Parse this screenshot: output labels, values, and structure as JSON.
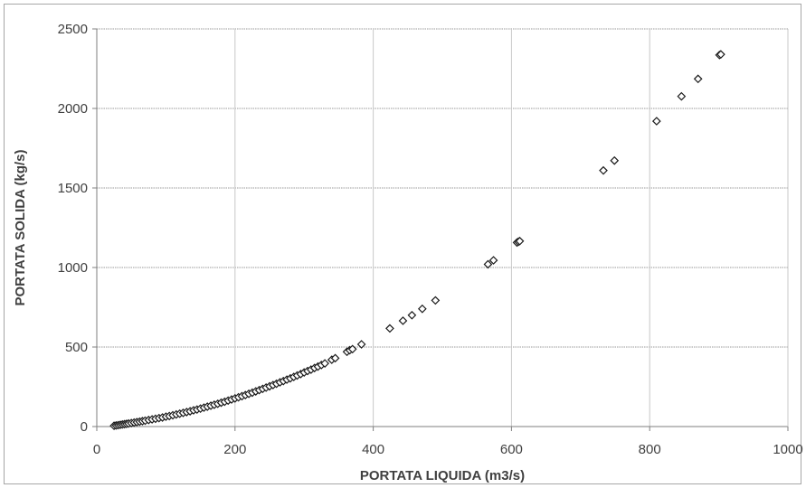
{
  "chart_data": {
    "type": "scatter",
    "title": "",
    "xlabel": "PORTATA LIQUIDA (m3/s)",
    "ylabel": "PORTATA SOLIDA (kg/s)",
    "xlim": [
      0,
      1000
    ],
    "ylim": [
      0,
      2500
    ],
    "x_ticks": [
      "0",
      "200",
      "400",
      "600",
      "800",
      "1000"
    ],
    "y_ticks": [
      "0",
      "500",
      "1000",
      "1500",
      "2000",
      "2500"
    ],
    "grid": true,
    "legend": "none",
    "marker": "open-diamond",
    "series": [
      {
        "points": [
          [
            25,
            5
          ],
          [
            28,
            7
          ],
          [
            31,
            9
          ],
          [
            34,
            11
          ],
          [
            37,
            13
          ],
          [
            40,
            15
          ],
          [
            43,
            17
          ],
          [
            46,
            19
          ],
          [
            50,
            22
          ],
          [
            54,
            25
          ],
          [
            58,
            28
          ],
          [
            62,
            31
          ],
          [
            66,
            34
          ],
          [
            70,
            37
          ],
          [
            75,
            41
          ],
          [
            80,
            45
          ],
          [
            85,
            49
          ],
          [
            90,
            53
          ],
          [
            95,
            57
          ],
          [
            100,
            62
          ],
          [
            105,
            66
          ],
          [
            110,
            71
          ],
          [
            115,
            76
          ],
          [
            120,
            81
          ],
          [
            125,
            86
          ],
          [
            130,
            91
          ],
          [
            135,
            96
          ],
          [
            140,
            102
          ],
          [
            145,
            107
          ],
          [
            150,
            113
          ],
          [
            155,
            119
          ],
          [
            160,
            125
          ],
          [
            165,
            131
          ],
          [
            170,
            137
          ],
          [
            175,
            143
          ],
          [
            180,
            150
          ],
          [
            185,
            156
          ],
          [
            190,
            163
          ],
          [
            195,
            170
          ],
          [
            200,
            177
          ],
          [
            205,
            184
          ],
          [
            210,
            191
          ],
          [
            215,
            198
          ],
          [
            220,
            206
          ],
          [
            225,
            213
          ],
          [
            230,
            221
          ],
          [
            235,
            229
          ],
          [
            240,
            237
          ],
          [
            245,
            245
          ],
          [
            250,
            253
          ],
          [
            255,
            261
          ],
          [
            260,
            269
          ],
          [
            265,
            278
          ],
          [
            270,
            286
          ],
          [
            275,
            295
          ],
          [
            280,
            303
          ],
          [
            285,
            312
          ],
          [
            290,
            321
          ],
          [
            295,
            330
          ],
          [
            300,
            340
          ],
          [
            305,
            349
          ],
          [
            310,
            358
          ],
          [
            315,
            368
          ],
          [
            320,
            377
          ],
          [
            325,
            387
          ],
          [
            330,
            397
          ],
          [
            340,
            420
          ],
          [
            345,
            430
          ],
          [
            362,
            470
          ],
          [
            366,
            480
          ],
          [
            370,
            487
          ],
          [
            383,
            517
          ],
          [
            424,
            617
          ],
          [
            443,
            665
          ],
          [
            456,
            700
          ],
          [
            471,
            740
          ],
          [
            490,
            793
          ],
          [
            566,
            1020
          ],
          [
            574,
            1045
          ],
          [
            608,
            1157
          ],
          [
            610,
            1162
          ],
          [
            612,
            1166
          ],
          [
            733,
            1610
          ],
          [
            749,
            1672
          ],
          [
            810,
            1920
          ],
          [
            846,
            2076
          ],
          [
            870,
            2186
          ],
          [
            901,
            2336
          ],
          [
            903,
            2340
          ]
        ]
      }
    ]
  }
}
